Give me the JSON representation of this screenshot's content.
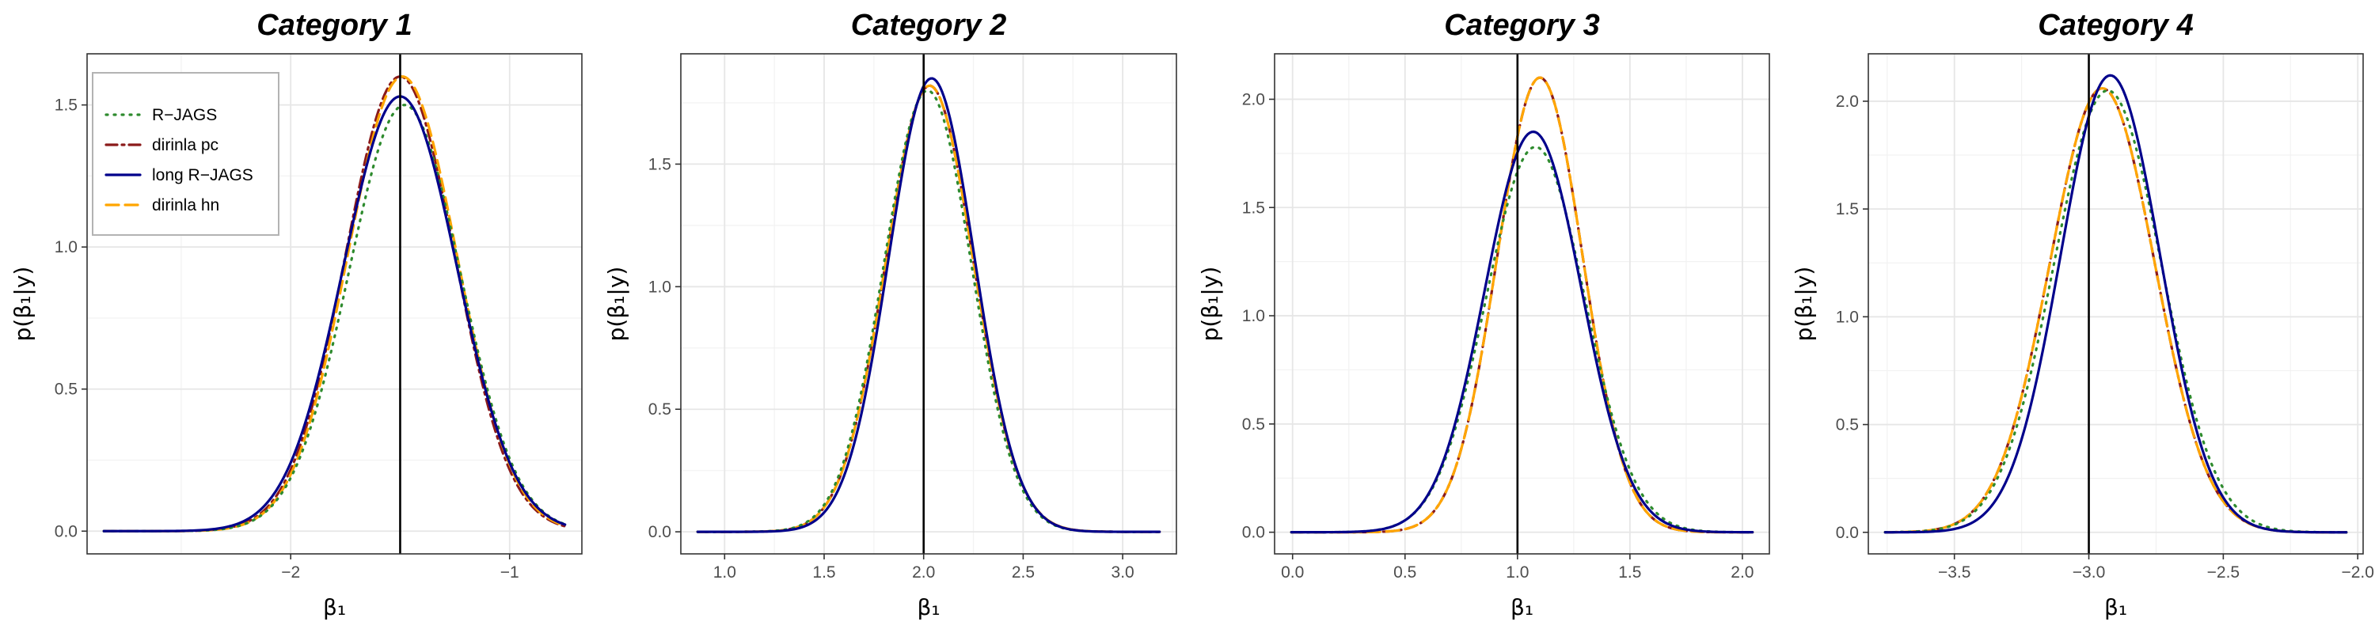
{
  "chart_data": [
    {
      "type": "line",
      "title": "Category 1",
      "xlabel": "β₁",
      "ylabel": "p(β₁|y)",
      "xlim": [
        -2.93,
        -0.67
      ],
      "ylim": [
        -0.08,
        1.68
      ],
      "xticks": [
        -2,
        -1
      ],
      "xtick_labels": [
        "−2",
        "−1"
      ],
      "yticks": [
        0.0,
        0.5,
        1.0,
        1.5
      ],
      "ytick_labels": [
        "0.0",
        "0.5",
        "1.0",
        "1.5"
      ],
      "vline": -1.5,
      "grid": true,
      "legend": "top-left",
      "series": [
        {
          "name": "R−JAGS",
          "color": "#2e8b2e",
          "dash": "dotted",
          "mean": -1.48,
          "sd": 0.255,
          "peak": 1.5
        },
        {
          "name": "dirinla pc",
          "color": "#8b1a1a",
          "dash": "dashdot",
          "mean": -1.5,
          "sd": 0.25,
          "peak": 1.6
        },
        {
          "name": "long R−JAGS",
          "color": "#00008b",
          "dash": "solid",
          "mean": -1.5,
          "sd": 0.26,
          "peak": 1.53
        },
        {
          "name": "dirinla hn",
          "color": "#ffa500",
          "dash": "dashed",
          "mean": -1.49,
          "sd": 0.25,
          "peak": 1.6
        }
      ]
    },
    {
      "type": "line",
      "title": "Category 2",
      "xlabel": "β₁",
      "ylabel": "p(β₁|y)",
      "xlim": [
        0.78,
        3.27
      ],
      "ylim": [
        -0.09,
        1.95
      ],
      "xticks": [
        1.0,
        1.5,
        2.0,
        2.5,
        3.0
      ],
      "xtick_labels": [
        "1.0",
        "1.5",
        "2.0",
        "2.5",
        "3.0"
      ],
      "yticks": [
        0.0,
        0.5,
        1.0,
        1.5
      ],
      "ytick_labels": [
        "0.0",
        "0.5",
        "1.0",
        "1.5"
      ],
      "vline": 2.0,
      "grid": true,
      "series": [
        {
          "name": "R−JAGS",
          "color": "#2e8b2e",
          "dash": "dotted",
          "mean": 2.02,
          "sd": 0.22,
          "peak": 1.8
        },
        {
          "name": "dirinla pc",
          "color": "#8b1a1a",
          "dash": "dashdot",
          "mean": 2.03,
          "sd": 0.22,
          "peak": 1.82
        },
        {
          "name": "long R−JAGS",
          "color": "#00008b",
          "dash": "solid",
          "mean": 2.04,
          "sd": 0.215,
          "peak": 1.85
        },
        {
          "name": "dirinla hn",
          "color": "#ffa500",
          "dash": "dashed",
          "mean": 2.03,
          "sd": 0.22,
          "peak": 1.82
        }
      ]
    },
    {
      "type": "line",
      "title": "Category 3",
      "xlabel": "β₁",
      "ylabel": "p(β₁|y)",
      "xlim": [
        -0.08,
        2.12
      ],
      "ylim": [
        -0.1,
        2.21
      ],
      "xticks": [
        0.0,
        0.5,
        1.0,
        1.5,
        2.0
      ],
      "xtick_labels": [
        "0.0",
        "0.5",
        "1.0",
        "1.5",
        "2.0"
      ],
      "yticks": [
        0.0,
        0.5,
        1.0,
        1.5,
        2.0
      ],
      "ytick_labels": [
        "0.0",
        "0.5",
        "1.0",
        "1.5",
        "2.0"
      ],
      "vline": 1.0,
      "grid": true,
      "series": [
        {
          "name": "R−JAGS",
          "color": "#2e8b2e",
          "dash": "dotted",
          "mean": 1.08,
          "sd": 0.22,
          "peak": 1.78
        },
        {
          "name": "dirinla pc",
          "color": "#8b1a1a",
          "dash": "dashdot",
          "mean": 1.1,
          "sd": 0.19,
          "peak": 2.1
        },
        {
          "name": "long R−JAGS",
          "color": "#00008b",
          "dash": "solid",
          "mean": 1.07,
          "sd": 0.215,
          "peak": 1.85
        },
        {
          "name": "dirinla hn",
          "color": "#ffa500",
          "dash": "dashed",
          "mean": 1.1,
          "sd": 0.19,
          "peak": 2.1
        }
      ]
    },
    {
      "type": "line",
      "title": "Category 4",
      "xlabel": "β₁",
      "ylabel": "p(β₁|y)",
      "xlim": [
        -3.82,
        -1.98
      ],
      "ylim": [
        -0.1,
        2.22
      ],
      "xticks": [
        -3.5,
        -3.0,
        -2.5,
        -2.0
      ],
      "xtick_labels": [
        "−3.5",
        "−3.0",
        "−2.5",
        "−2.0"
      ],
      "yticks": [
        0.0,
        0.5,
        1.0,
        1.5,
        2.0
      ],
      "ytick_labels": [
        "0.0",
        "0.5",
        "1.0",
        "1.5",
        "2.0"
      ],
      "vline": -3.0,
      "grid": true,
      "series": [
        {
          "name": "R−JAGS",
          "color": "#2e8b2e",
          "dash": "dotted",
          "mean": -2.93,
          "sd": 0.2,
          "peak": 2.05
        },
        {
          "name": "dirinla pc",
          "color": "#8b1a1a",
          "dash": "dashdot",
          "mean": -2.95,
          "sd": 0.195,
          "peak": 2.06
        },
        {
          "name": "long R−JAGS",
          "color": "#00008b",
          "dash": "solid",
          "mean": -2.92,
          "sd": 0.185,
          "peak": 2.12
        },
        {
          "name": "dirinla hn",
          "color": "#ffa500",
          "dash": "dashed",
          "mean": -2.95,
          "sd": 0.195,
          "peak": 2.06
        }
      ]
    }
  ]
}
